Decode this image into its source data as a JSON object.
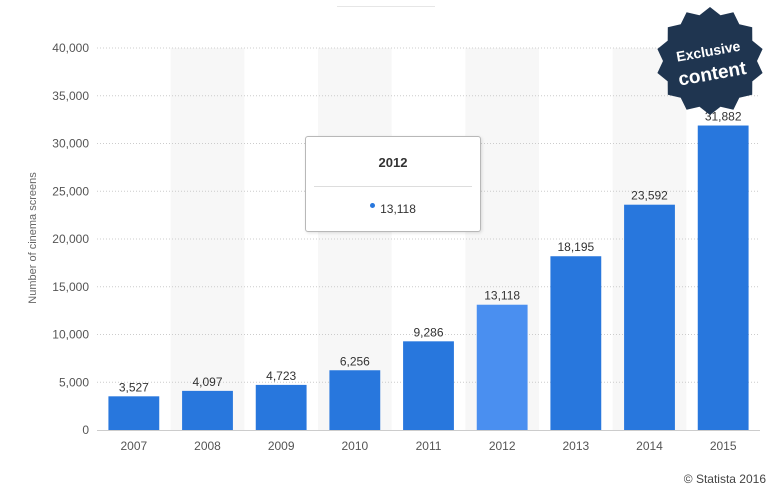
{
  "chart_data": {
    "type": "bar",
    "categories": [
      "2007",
      "2008",
      "2009",
      "2010",
      "2011",
      "2012",
      "2013",
      "2014",
      "2015"
    ],
    "values": [
      3527,
      4097,
      4723,
      6256,
      9286,
      13118,
      18195,
      23592,
      31882
    ],
    "value_labels": [
      "3,527",
      "4,097",
      "4,723",
      "6,256",
      "9,286",
      "13,118",
      "18,195",
      "23,592",
      "31,882"
    ],
    "highlighted_index": 5,
    "ylabel": "Number of cinema screens",
    "xlabel": "",
    "ylim": [
      0,
      40000
    ],
    "yticks": [
      0,
      5000,
      10000,
      15000,
      20000,
      25000,
      30000,
      35000,
      40000
    ],
    "ytick_labels": [
      "0",
      "5,000",
      "10,000",
      "15,000",
      "20,000",
      "25,000",
      "30,000",
      "35,000",
      "40,000"
    ],
    "grid": true,
    "colors": {
      "bar": "#2877dd",
      "bar_highlight": "#4a8ff0",
      "band": "#f7f7f7",
      "grid": "#cccccc",
      "axis_text": "#555555"
    }
  },
  "tooltip": {
    "title": "2012",
    "value": "13,118"
  },
  "badge": {
    "line1": "Exclusive",
    "line2": "content",
    "color": "#1f3550"
  },
  "credit": "© Statista 2016"
}
